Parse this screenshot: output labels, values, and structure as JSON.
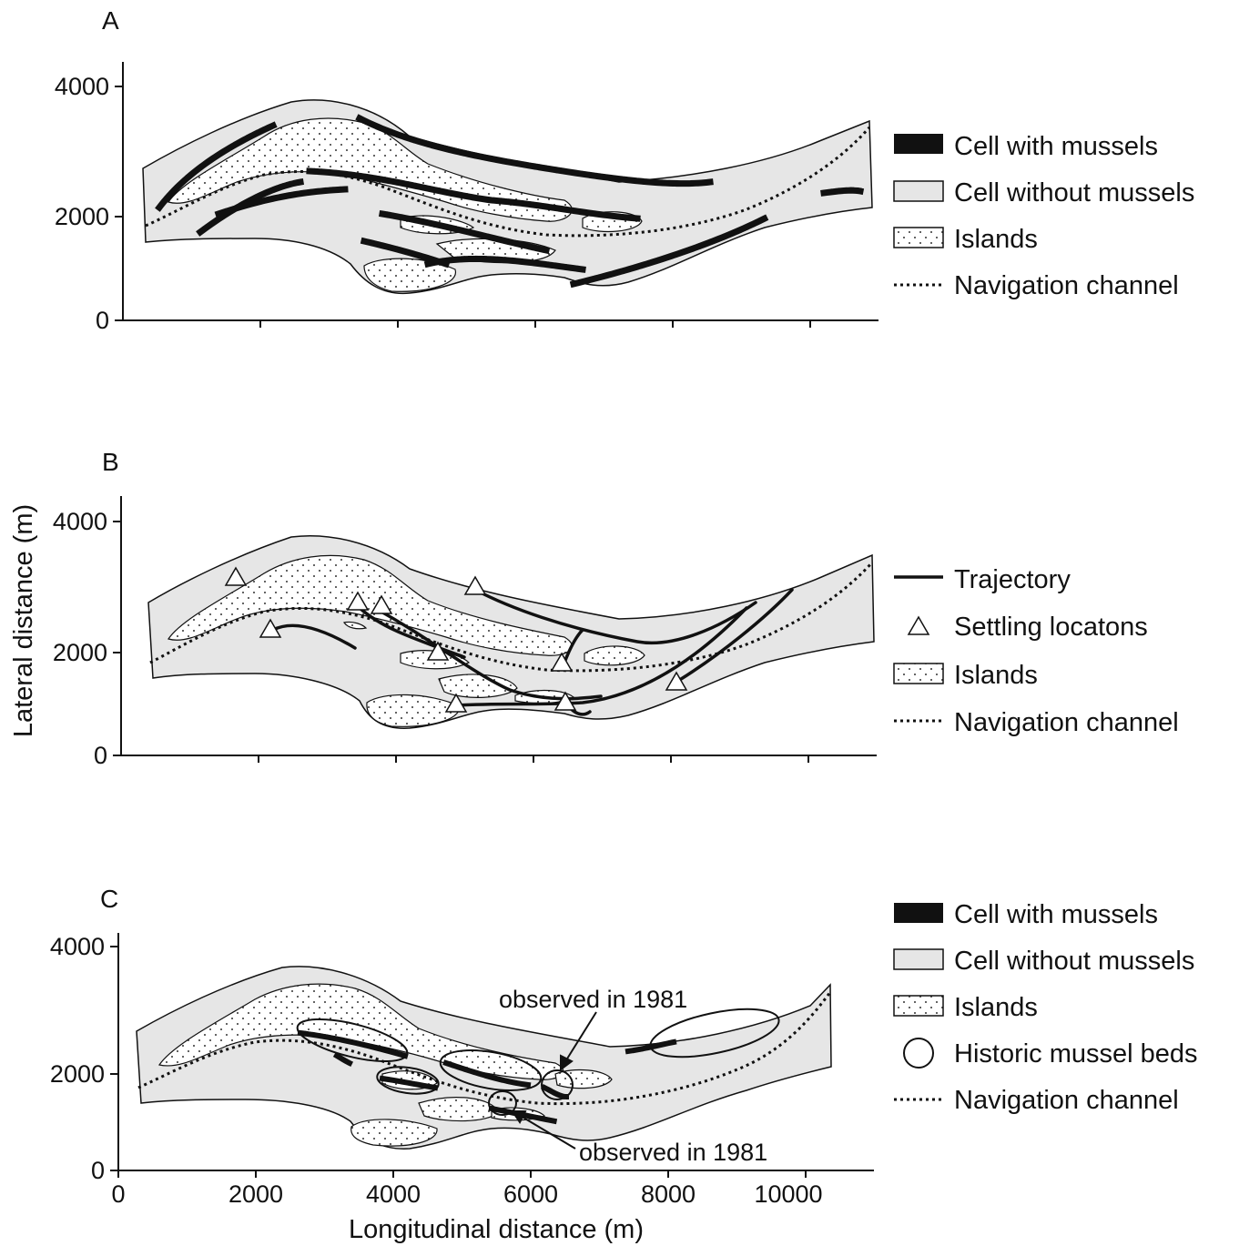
{
  "figure": {
    "y_axis_label": "Lateral distance (m)",
    "x_axis_label": "Longitudinal distance (m)",
    "colors": {
      "river_fill": "#e6e6e6",
      "island_fill": "#ffffff",
      "ink": "#111111",
      "mussel_cell": "#111111"
    }
  },
  "panels": [
    {
      "label": "A",
      "y_ticks": [
        "4000",
        "2000",
        "0"
      ],
      "legend": [
        {
          "symbol": "black-box",
          "label": "Cell with mussels"
        },
        {
          "symbol": "grey-box",
          "label": "Cell without mussels"
        },
        {
          "symbol": "dotted-box",
          "label": "Islands"
        },
        {
          "symbol": "dotted-line",
          "label": "Navigation channel"
        }
      ]
    },
    {
      "label": "B",
      "y_ticks": [
        "4000",
        "2000",
        "0"
      ],
      "legend": [
        {
          "symbol": "solid-line",
          "label": "Trajectory"
        },
        {
          "symbol": "triangle",
          "label": "Settling locatons"
        },
        {
          "symbol": "dotted-box",
          "label": "Islands"
        },
        {
          "symbol": "dotted-line",
          "label": "Navigation channel"
        }
      ]
    },
    {
      "label": "C",
      "y_ticks": [
        "4000",
        "2000",
        "0"
      ],
      "x_ticks": [
        "0",
        "2000",
        "4000",
        "6000",
        "8000",
        "10000"
      ],
      "legend": [
        {
          "symbol": "black-box",
          "label": "Cell with mussels"
        },
        {
          "symbol": "grey-box",
          "label": "Cell without mussels"
        },
        {
          "symbol": "dotted-box",
          "label": "Islands"
        },
        {
          "symbol": "circle",
          "label": "Historic mussel beds"
        },
        {
          "symbol": "dotted-line",
          "label": "Navigation channel"
        }
      ],
      "annotations": [
        "observed in 1981",
        "observed in 1981"
      ]
    }
  ]
}
